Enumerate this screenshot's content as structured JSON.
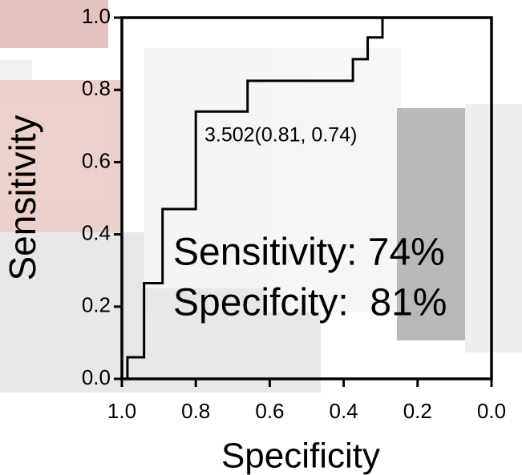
{
  "chart_data": {
    "type": "line",
    "xlabel": "Specificity",
    "ylabel": "Sensitivity",
    "xlim": [
      1.0,
      0.0
    ],
    "ylim": [
      0.0,
      1.0
    ],
    "xticks": [
      {
        "value": 1.0,
        "label": "1.0"
      },
      0.8,
      0.6,
      0.4,
      0.2,
      {
        "value": 0.0,
        "label": "0.0"
      }
    ],
    "yticks": [
      {
        "value": 0.0,
        "label": "0.0"
      },
      0.2,
      0.4,
      0.6,
      0.8,
      {
        "value": 1.0,
        "label": "1.0"
      }
    ],
    "color": "#000000",
    "x": [
      0.985,
      0.985,
      0.94,
      0.94,
      0.89,
      0.89,
      0.8,
      0.8,
      0.66,
      0.66,
      0.375,
      0.375,
      0.335,
      0.335,
      0.295,
      0.295
    ],
    "values": [
      0.0,
      0.06,
      0.06,
      0.265,
      0.265,
      0.47,
      0.47,
      0.74,
      0.74,
      0.825,
      0.825,
      0.885,
      0.885,
      0.945,
      0.945,
      1.0
    ],
    "annotations": [
      "3.502(0.81, 0.74)",
      "Sensitivity: 74%",
      "Specifcity:  81%"
    ]
  }
}
